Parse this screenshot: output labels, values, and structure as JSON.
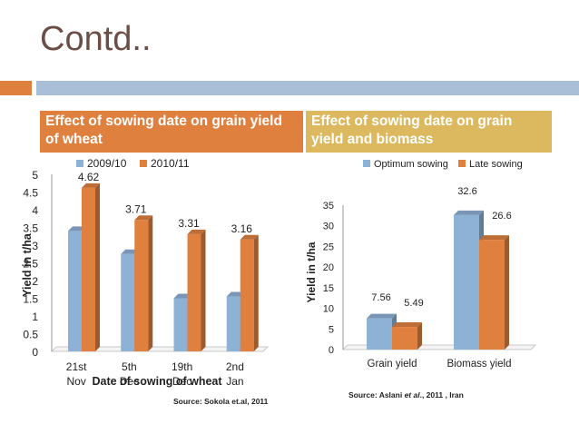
{
  "slide": {
    "title": "Contd.."
  },
  "left_panel": {
    "heading": "Effect of sowing date on  grain yield of wheat",
    "source": "Source: Sokola et.al, 2011"
  },
  "right_panel": {
    "heading": "Effect of sowing date on grain yield and biomass",
    "source_prefix": "Source: Aslani ",
    "source_italic": "et al",
    "source_suffix": "., 2011 , Iran"
  },
  "colors": {
    "blue": "#8eb1d6",
    "orange": "#e0803f",
    "accent_orange": "#e0803f",
    "accent_gold": "#dcb95f",
    "accent_blue": "#a9bfd7"
  },
  "chart_data": [
    {
      "type": "bar",
      "categories": [
        "21st Nov",
        "5th Dec",
        "19th Dec",
        "2nd Jan"
      ],
      "series": [
        {
          "name": "2009/10",
          "values": [
            3.4,
            2.75,
            1.5,
            1.55
          ]
        },
        {
          "name": "2010/11",
          "values": [
            4.62,
            3.71,
            3.31,
            3.16
          ]
        }
      ],
      "data_labels": {
        "2010/11": [
          "4.62",
          "3.71",
          "3.31",
          "3.16"
        ]
      },
      "xlabel": "Date of sowing of wheat",
      "ylabel": "Yield in t/ha",
      "ylim": [
        0,
        5
      ],
      "yticks": [
        "0",
        "0.5",
        "1",
        "1.5",
        "2",
        "2.5",
        "3",
        "3.5",
        "4",
        "4.5",
        "5"
      ],
      "legend": "top"
    },
    {
      "type": "bar",
      "categories": [
        "Grain yield",
        "Biomass yield"
      ],
      "series": [
        {
          "name": "Optimum sowing",
          "values": [
            7.56,
            32.6
          ]
        },
        {
          "name": "Late sowing",
          "values": [
            5.49,
            26.6
          ]
        }
      ],
      "data_labels": [
        [
          "7.56",
          "32.6"
        ],
        [
          "5.49",
          "26.6"
        ]
      ],
      "xlabel": "",
      "ylabel": "Yield in t/ha",
      "ylim": [
        0,
        35
      ],
      "yticks": [
        "0",
        "5",
        "10",
        "15",
        "20",
        "25",
        "30",
        "35"
      ],
      "legend": "top"
    }
  ]
}
